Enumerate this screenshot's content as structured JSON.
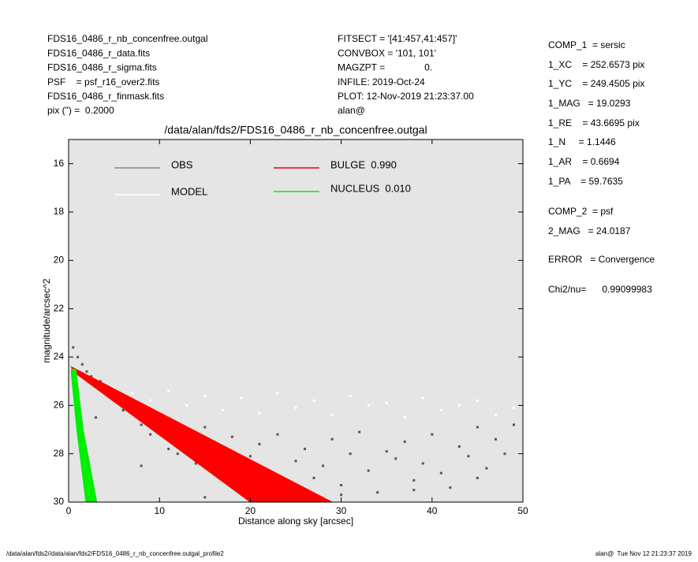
{
  "header": {
    "left": [
      "FDS16_0486_r_nb_concenfree.outgal",
      "FDS16_0486_r_data.fits",
      "FDS16_0486_r_sigma.fits",
      "PSF    = psf_r16_over2.fits",
      "FDS16_0486_r_finmask.fits",
      "pix (\") =  0.2000"
    ],
    "middle": [
      "FITSECT = '[41:457,41:457]'",
      "CONVBOX = '101, 101'",
      "MAGZPT =               0.",
      "INFILE: 2019-Oct-24",
      "PLOT: 12-Nov-2019 21:23:37.00",
      "alan@"
    ],
    "right": [
      "COMP_1  = sersic",
      "1_XC    = 252.6573 pix",
      "1_YC    = 249.4505 pix",
      "1_MAG   = 19.0293",
      "1_RE    = 43.6695 pix",
      "1_N     = 1.1446",
      "1_AR    = 0.6694",
      "1_PA    = 59.7635",
      "COMP_2  = psf",
      "2_MAG   = 24.0187",
      "ERROR   = Convergence",
      "Chi2/nu=      0.99099983"
    ]
  },
  "chart_data": {
    "type": "scatter",
    "title": "/data/alan/fds2/FDS16_0486_r_nb_concenfree.outgal",
    "x_label": "Distance along sky [arcsec]",
    "y_label": "magnitude/arcsec^2",
    "xlim": [
      0,
      50
    ],
    "ylim": [
      30,
      15
    ],
    "xticks": [
      0,
      10,
      20,
      30,
      40,
      50
    ],
    "yticks": [
      16,
      18,
      20,
      22,
      24,
      26,
      28,
      30
    ],
    "background": "#e5e5e5",
    "series": [
      {
        "name": "OBS",
        "color": "#555555",
        "x": [
          0.5,
          1,
          1.5,
          2,
          2.5,
          3,
          3.5,
          4,
          5,
          6,
          7,
          8,
          9,
          10,
          11,
          12,
          13,
          14,
          15,
          16,
          17,
          18,
          19,
          20,
          21,
          22,
          23,
          24,
          25,
          26,
          27,
          28,
          29,
          30,
          31,
          32,
          33,
          34,
          35,
          36,
          37,
          38,
          39,
          40,
          41,
          42,
          43,
          44,
          45,
          46,
          47,
          48,
          49,
          3,
          8,
          15,
          22,
          30,
          38,
          45
        ],
        "values": [
          23.6,
          24.0,
          24.3,
          24.6,
          24.8,
          25.2,
          25.0,
          25.5,
          25.8,
          26.2,
          26.0,
          26.8,
          27.2,
          26.5,
          27.8,
          28.0,
          27.0,
          28.4,
          26.9,
          27.5,
          28.8,
          27.3,
          29.2,
          28.1,
          27.6,
          28.9,
          27.2,
          29.5,
          28.3,
          27.8,
          29.0,
          28.5,
          27.4,
          29.3,
          28.0,
          27.1,
          28.7,
          29.6,
          27.9,
          28.2,
          27.5,
          29.1,
          28.4,
          27.2,
          28.8,
          29.4,
          27.7,
          28.1,
          26.9,
          28.6,
          27.4,
          28.0,
          26.8,
          26.5,
          28.5,
          29.8,
          29.9,
          29.7,
          29.5,
          29.0
        ]
      },
      {
        "name": "MODEL",
        "color": "#ffffff",
        "x": [
          1,
          3,
          5,
          7,
          9,
          11,
          13,
          15,
          17,
          19,
          21,
          23,
          25,
          27,
          29,
          31,
          33,
          35,
          37,
          39,
          41,
          43,
          45,
          47,
          49
        ],
        "values": [
          24.6,
          25.0,
          25.3,
          25.5,
          25.8,
          25.4,
          26.0,
          25.6,
          26.2,
          25.7,
          26.3,
          25.5,
          26.1,
          25.8,
          26.4,
          25.6,
          26.0,
          25.9,
          26.5,
          25.7,
          26.2,
          26.0,
          25.8,
          26.4,
          26.1
        ]
      },
      {
        "name": "BULGE  0.990",
        "color": "#ff0000",
        "band": true,
        "x": [
          0.3,
          29,
          20,
          0.5
        ],
        "values": [
          24.4,
          30,
          30,
          24.6
        ]
      },
      {
        "name": "NUCLEUS  0.010",
        "color": "#00ee00",
        "band": true,
        "x": [
          0.3,
          0.8,
          1.6,
          3.1,
          1.9,
          0.9,
          0.3
        ],
        "values": [
          24.5,
          24.5,
          27,
          30,
          30,
          27,
          24.7
        ]
      }
    ]
  },
  "footer": {
    "left": "/data/alan/fds2//data/alan/fds2/FDS16_0486_r_nb_concenfree.outgal_profile2",
    "right": "alan@  Tue Nov 12 21:23:37 2019"
  }
}
